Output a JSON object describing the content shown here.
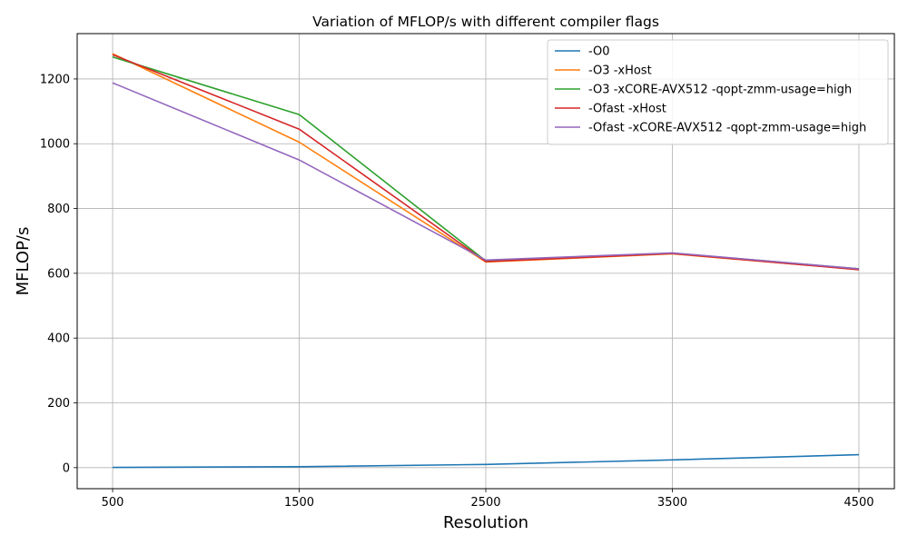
{
  "chart_data": {
    "type": "line",
    "title": "Variation of MFLOP/s with different compiler flags",
    "xlabel": "Resolution",
    "ylabel": "MFLOP/s",
    "x": [
      500,
      1500,
      2500,
      3500,
      4500
    ],
    "x_ticks": [
      "500",
      "1500",
      "2500",
      "3500",
      "4500"
    ],
    "y_ticks": [
      "0",
      "200",
      "400",
      "600",
      "800",
      "1000",
      "1200"
    ],
    "xlim": [
      310,
      4690
    ],
    "ylim": [
      -65,
      1340
    ],
    "grid": true,
    "legend_position": "top-right",
    "series": [
      {
        "name": "-O0",
        "color": "#1f77b4",
        "values": [
          0.5,
          3,
          10,
          24,
          40
        ]
      },
      {
        "name": "-O3 -xHost",
        "color": "#ff7f0e",
        "values": [
          1278,
          1005,
          635,
          660,
          612
        ]
      },
      {
        "name": "-O3 -xCORE-AVX512 -qopt-zmm-usage=high",
        "color": "#2ca02c",
        "values": [
          1268,
          1090,
          638,
          662,
          614
        ]
      },
      {
        "name": "-Ofast -xHost",
        "color": "#d62728",
        "values": [
          1275,
          1045,
          636,
          661,
          611
        ]
      },
      {
        "name": "-Ofast -xCORE-AVX512 -qopt-zmm-usage=high",
        "color": "#9467bd",
        "values": [
          1188,
          950,
          641,
          663,
          614
        ]
      }
    ]
  }
}
